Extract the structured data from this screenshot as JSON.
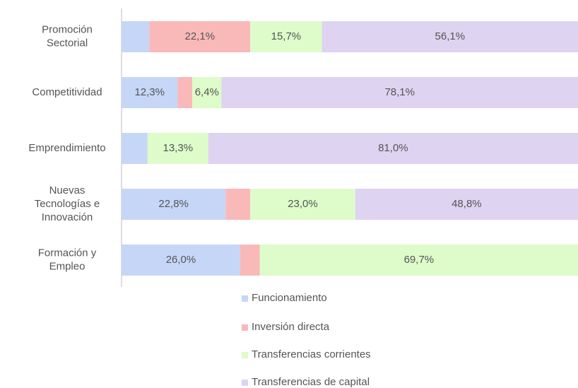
{
  "chart_data": {
    "type": "stacked_bar_horizontal",
    "categories": [
      "Promoción\nSectorial",
      "Competitividad",
      "Emprendimiento",
      "Nuevas\nTecnologías e\nInnovación",
      "Formación y\nEmpleo"
    ],
    "xlim": [
      0,
      100
    ],
    "series": [
      {
        "name": "Funcionamiento",
        "color": "#c6d6f6",
        "values": [
          6.1,
          12.3,
          5.7,
          22.8,
          26.0
        ],
        "value_labels": [
          null,
          "12,3%",
          null,
          "22,8%",
          "26,0%"
        ]
      },
      {
        "name": "Inversión directa",
        "color": "#f9b9b9",
        "values": [
          22.1,
          3.2,
          0,
          5.4,
          4.3
        ],
        "value_labels": [
          "22,1%",
          null,
          null,
          null,
          null
        ]
      },
      {
        "name": "Transferencias corrientes",
        "color": "#defbca",
        "values": [
          15.7,
          6.4,
          13.3,
          23.0,
          69.7
        ],
        "value_labels": [
          "15,7%",
          "6,4%",
          "13,3%",
          "23,0%",
          "69,7%"
        ]
      },
      {
        "name": "Transferencias de capital",
        "color": "#ded3f1",
        "values": [
          56.1,
          78.1,
          81.0,
          48.8,
          0
        ],
        "value_labels": [
          "56,1%",
          "78,1%",
          "81,0%",
          "48,8%",
          null
        ]
      }
    ],
    "legend": "bottom"
  }
}
